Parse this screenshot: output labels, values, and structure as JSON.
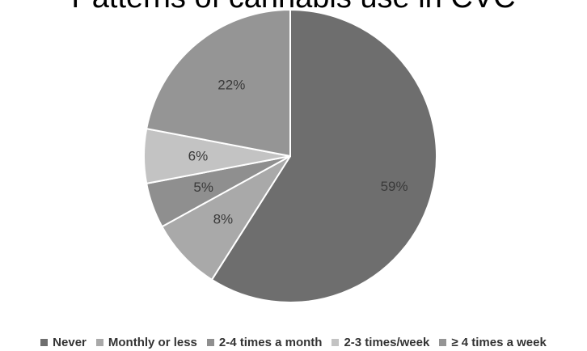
{
  "chart_data": {
    "type": "pie",
    "title": "Patterns of cannabis use in CVC",
    "categories": [
      "Never",
      "Monthly or less",
      "2-4 times a month",
      "2-3 times/week",
      "≥ 4 times a week"
    ],
    "values": [
      59,
      8,
      5,
      6,
      22
    ],
    "labels": [
      "59%",
      "8%",
      "5%",
      "6%",
      "22%"
    ],
    "colors": [
      "#6e6e6e",
      "#a9a9a9",
      "#8f8f8f",
      "#c3c3c3",
      "#959595"
    ],
    "legend_position": "bottom",
    "start_angle": "12 o'clock",
    "direction": "clockwise"
  }
}
